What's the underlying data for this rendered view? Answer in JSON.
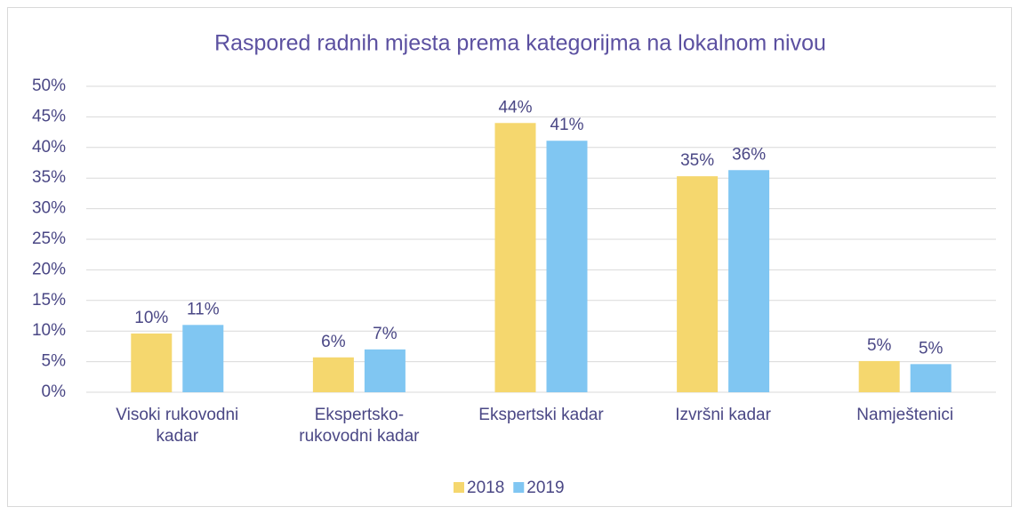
{
  "chart_data": {
    "type": "bar",
    "title": "Raspored radnih mjesta prema kategorijma na lokalnom nivou",
    "categories": [
      "Visoki rukovodni kadar",
      "Ekspertsko-rukovodni kadar",
      "Ekspertski kadar",
      "Izvršni kadar",
      "Namještenici"
    ],
    "series": [
      {
        "name": "2018",
        "color": "#f5d76e",
        "values": [
          9.6,
          5.7,
          44.0,
          35.3,
          5.1
        ],
        "value_labels": [
          "10%",
          "6%",
          "44%",
          "35%",
          "5%"
        ]
      },
      {
        "name": "2019",
        "color": "#80c6f2",
        "values": [
          11.0,
          7.0,
          41.1,
          36.3,
          4.6
        ],
        "value_labels": [
          "11%",
          "7%",
          "41%",
          "36%",
          "5%"
        ]
      }
    ],
    "ylim": [
      0,
      50
    ],
    "yticks": [
      {
        "value": 0,
        "label": "0%"
      },
      {
        "value": 5,
        "label": "5%"
      },
      {
        "value": 10,
        "label": "10%"
      },
      {
        "value": 15,
        "label": "15%"
      },
      {
        "value": 20,
        "label": "20%"
      },
      {
        "value": 25,
        "label": "25%"
      },
      {
        "value": 30,
        "label": "30%"
      },
      {
        "value": 35,
        "label": "35%"
      },
      {
        "value": 40,
        "label": "40%"
      },
      {
        "value": 45,
        "label": "45%"
      },
      {
        "value": 50,
        "label": "50%"
      }
    ],
    "grid": true,
    "legend": "bottom"
  }
}
